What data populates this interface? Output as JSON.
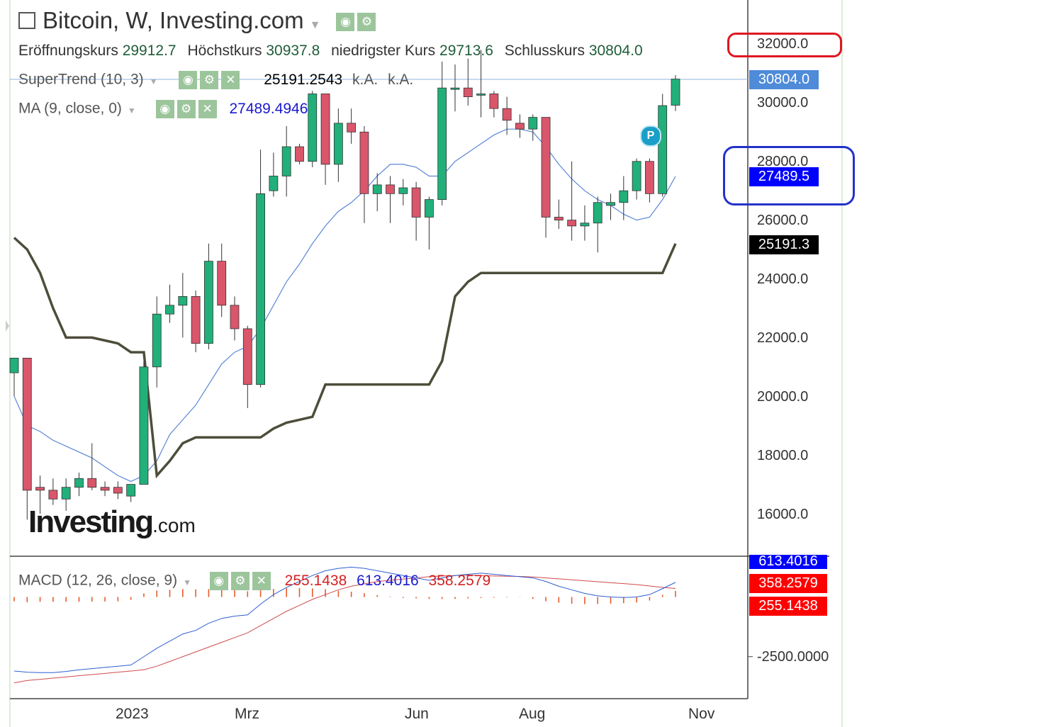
{
  "title": "Bitcoin, W, Investing.com",
  "ohlc": {
    "open_label": "Eröffnungskurs",
    "open": "29912.7",
    "high_label": "Höchstkurs",
    "high": "30937.8",
    "low_label": "niedrigster Kurs",
    "low": "29713.6",
    "close_label": "Schlusskurs",
    "close": "30804.0"
  },
  "indicators": {
    "supertrend": {
      "label": "SuperTrend (10, 3)",
      "value": "25191.2543",
      "na1": "k.A.",
      "na2": "k.A."
    },
    "ma": {
      "label": "MA (9, close, 0)",
      "value": "27489.4946"
    },
    "macd": {
      "label": "MACD (12, 26, close, 9)",
      "v1": "255.1438",
      "v2": "613.4016",
      "v3": "358.2579"
    }
  },
  "price_tags": {
    "close": "30804.0",
    "ma": "27489.5",
    "supertrend": "25191.3",
    "macd_blue": "613.4016",
    "macd_signal": "358.2579",
    "macd_hist": "255.1438"
  },
  "y_axis_labels": [
    "32000.0",
    "30000.0",
    "28000.0",
    "26000.0",
    "24000.0",
    "22000.0",
    "20000.0",
    "18000.0",
    "16000.0"
  ],
  "macd_axis_label": "-2500.0000",
  "x_axis_labels": [
    "2023",
    "Mrz",
    "Jun",
    "Aug",
    "Nov"
  ],
  "logo": {
    "brand": "Investing",
    "suffix": ".com"
  },
  "pattern_marker": "P",
  "colors": {
    "up": "#21b07a",
    "down": "#d9566b",
    "ma": "#5b86d6",
    "supertrend": "#4d4d3a",
    "macd_line": "#2f5fd0",
    "signal_line": "#d04a4a",
    "highlight_red": "#e0161f",
    "highlight_blue": "#2233c8",
    "close_tag": "#4f8bd8",
    "ma_tag": "#0000ff"
  },
  "chart_data": {
    "type": "candlestick",
    "series_name": "Bitcoin",
    "interval": "W",
    "ylim": [
      15000,
      33000
    ],
    "candles": [
      {
        "o": 20800,
        "h": 21200,
        "l": 20000,
        "c": 21300
      },
      {
        "o": 21300,
        "h": 21300,
        "l": 15800,
        "c": 16800
      },
      {
        "o": 16900,
        "h": 17300,
        "l": 16000,
        "c": 16800
      },
      {
        "o": 16800,
        "h": 17200,
        "l": 16300,
        "c": 16500
      },
      {
        "o": 16500,
        "h": 17200,
        "l": 16100,
        "c": 16900
      },
      {
        "o": 16900,
        "h": 17400,
        "l": 16600,
        "c": 17200
      },
      {
        "o": 17200,
        "h": 18400,
        "l": 16800,
        "c": 16900
      },
      {
        "o": 16900,
        "h": 17100,
        "l": 16600,
        "c": 16800
      },
      {
        "o": 16900,
        "h": 17100,
        "l": 16500,
        "c": 16700
      },
      {
        "o": 16600,
        "h": 17000,
        "l": 16400,
        "c": 17000
      },
      {
        "o": 17000,
        "h": 21200,
        "l": 17000,
        "c": 21000
      },
      {
        "o": 21000,
        "h": 23400,
        "l": 20300,
        "c": 22800
      },
      {
        "o": 22800,
        "h": 23800,
        "l": 22500,
        "c": 23100
      },
      {
        "o": 23100,
        "h": 24200,
        "l": 22000,
        "c": 23400
      },
      {
        "o": 23400,
        "h": 23600,
        "l": 21500,
        "c": 21800
      },
      {
        "o": 21800,
        "h": 25200,
        "l": 21600,
        "c": 24600
      },
      {
        "o": 24600,
        "h": 25200,
        "l": 22700,
        "c": 23100
      },
      {
        "o": 23100,
        "h": 23400,
        "l": 21900,
        "c": 22300
      },
      {
        "o": 22300,
        "h": 22400,
        "l": 19600,
        "c": 20400
      },
      {
        "o": 20400,
        "h": 28400,
        "l": 20300,
        "c": 26900
      },
      {
        "o": 27000,
        "h": 28300,
        "l": 26800,
        "c": 27500
      },
      {
        "o": 27500,
        "h": 29200,
        "l": 26800,
        "c": 28500
      },
      {
        "o": 28500,
        "h": 28600,
        "l": 27900,
        "c": 28000
      },
      {
        "o": 28000,
        "h": 30400,
        "l": 27800,
        "c": 30300
      },
      {
        "o": 30300,
        "h": 30300,
        "l": 27200,
        "c": 27900
      },
      {
        "o": 27900,
        "h": 29800,
        "l": 27300,
        "c": 29300
      },
      {
        "o": 29300,
        "h": 29800,
        "l": 28600,
        "c": 29000
      },
      {
        "o": 29000,
        "h": 29200,
        "l": 25900,
        "c": 26900
      },
      {
        "o": 26900,
        "h": 27600,
        "l": 26300,
        "c": 27200
      },
      {
        "o": 27200,
        "h": 27500,
        "l": 25900,
        "c": 26900
      },
      {
        "o": 26900,
        "h": 27400,
        "l": 26500,
        "c": 27100
      },
      {
        "o": 27100,
        "h": 27300,
        "l": 25300,
        "c": 26100
      },
      {
        "o": 26100,
        "h": 26800,
        "l": 25000,
        "c": 26700
      },
      {
        "o": 26700,
        "h": 31400,
        "l": 26500,
        "c": 30500
      },
      {
        "o": 30500,
        "h": 31300,
        "l": 29700,
        "c": 30500
      },
      {
        "o": 30500,
        "h": 31500,
        "l": 29900,
        "c": 30200
      },
      {
        "o": 30300,
        "h": 31800,
        "l": 29500,
        "c": 30300
      },
      {
        "o": 30300,
        "h": 30400,
        "l": 29500,
        "c": 29800
      },
      {
        "o": 29800,
        "h": 30200,
        "l": 28900,
        "c": 29400
      },
      {
        "o": 29300,
        "h": 29600,
        "l": 28800,
        "c": 29100
      },
      {
        "o": 29100,
        "h": 29600,
        "l": 28700,
        "c": 29500
      },
      {
        "o": 29500,
        "h": 29500,
        "l": 25400,
        "c": 26100
      },
      {
        "o": 26100,
        "h": 26700,
        "l": 25700,
        "c": 26000
      },
      {
        "o": 26000,
        "h": 28000,
        "l": 25300,
        "c": 25800
      },
      {
        "o": 25800,
        "h": 26500,
        "l": 25300,
        "c": 25900
      },
      {
        "o": 25900,
        "h": 26800,
        "l": 24900,
        "c": 26600
      },
      {
        "o": 26500,
        "h": 26900,
        "l": 26000,
        "c": 26600
      },
      {
        "o": 26600,
        "h": 27500,
        "l": 26000,
        "c": 27000
      },
      {
        "o": 27000,
        "h": 28100,
        "l": 26700,
        "c": 28000
      },
      {
        "o": 28000,
        "h": 28100,
        "l": 26600,
        "c": 26900
      },
      {
        "o": 26900,
        "h": 30300,
        "l": 26800,
        "c": 29900
      },
      {
        "o": 29912.7,
        "h": 30937.8,
        "l": 29713.6,
        "c": 30804.0
      }
    ],
    "supertrend": [
      25400,
      25000,
      24200,
      23000,
      22000,
      22000,
      22000,
      21900,
      21800,
      21500,
      21500,
      17300,
      17800,
      18400,
      18600,
      18600,
      18600,
      18600,
      18600,
      18600,
      18900,
      19100,
      19200,
      19300,
      20400,
      20400,
      20400,
      20400,
      20400,
      20400,
      20400,
      20400,
      20400,
      21200,
      23400,
      23900,
      24200,
      24200,
      24200,
      24200,
      24200,
      24200,
      24200,
      24200,
      24200,
      24200,
      24200,
      24200,
      24200,
      24200,
      24200,
      25200
    ],
    "ma": [
      20000,
      19000,
      18800,
      18500,
      18300,
      18100,
      17900,
      17600,
      17300,
      17100,
      17300,
      17800,
      18700,
      19200,
      19700,
      20400,
      21100,
      21500,
      21700,
      22300,
      23100,
      23900,
      24500,
      25200,
      25800,
      26300,
      26600,
      27000,
      27500,
      27900,
      27900,
      27800,
      27500,
      27500,
      28000,
      28300,
      28600,
      28900,
      29100,
      29100,
      29000,
      28500,
      27900,
      27400,
      27000,
      26700,
      26500,
      26200,
      26000,
      26100,
      26700,
      27489.5
    ],
    "macd_hist": [
      -180,
      -220,
      -200,
      -200,
      -200,
      -200,
      -190,
      -190,
      -180,
      -120,
      150,
      270,
      300,
      330,
      320,
      330,
      300,
      280,
      240,
      290,
      340,
      370,
      380,
      360,
      330,
      260,
      220,
      160,
      80,
      20,
      -40,
      -60,
      -80,
      -80,
      -80,
      -60,
      -40,
      -30,
      -20,
      -10,
      -80,
      -180,
      -240,
      -280,
      -300,
      -290,
      -280,
      -260,
      -230,
      -150,
      90,
      255.1438
    ],
    "macd": [
      -3100,
      -3150,
      -3170,
      -3170,
      -3120,
      -3050,
      -3000,
      -2950,
      -2900,
      -2850,
      -2500,
      -2150,
      -1850,
      -1550,
      -1400,
      -1100,
      -900,
      -800,
      -750,
      -300,
      100,
      400,
      650,
      900,
      1100,
      1200,
      1250,
      1200,
      1100,
      1000,
      900,
      800,
      700,
      800,
      900,
      950,
      1000,
      950,
      900,
      850,
      800,
      650,
      450,
      300,
      150,
      50,
      0,
      -20,
      0,
      100,
      350,
      613.4016
    ],
    "signal": [
      -3600,
      -3500,
      -3450,
      -3400,
      -3350,
      -3300,
      -3250,
      -3200,
      -3150,
      -3100,
      -3050,
      -2900,
      -2700,
      -2500,
      -2300,
      -2100,
      -1900,
      -1700,
      -1500,
      -1200,
      -900,
      -600,
      -350,
      -100,
      100,
      300,
      450,
      550,
      650,
      700,
      750,
      800,
      850,
      880,
      900,
      920,
      900,
      880,
      870,
      860,
      840,
      800,
      760,
      720,
      680,
      640,
      600,
      560,
      520,
      460,
      400,
      358.2579
    ],
    "macd_ylim": [
      -4200,
      1500
    ],
    "pattern_marker_week_index": 50
  }
}
